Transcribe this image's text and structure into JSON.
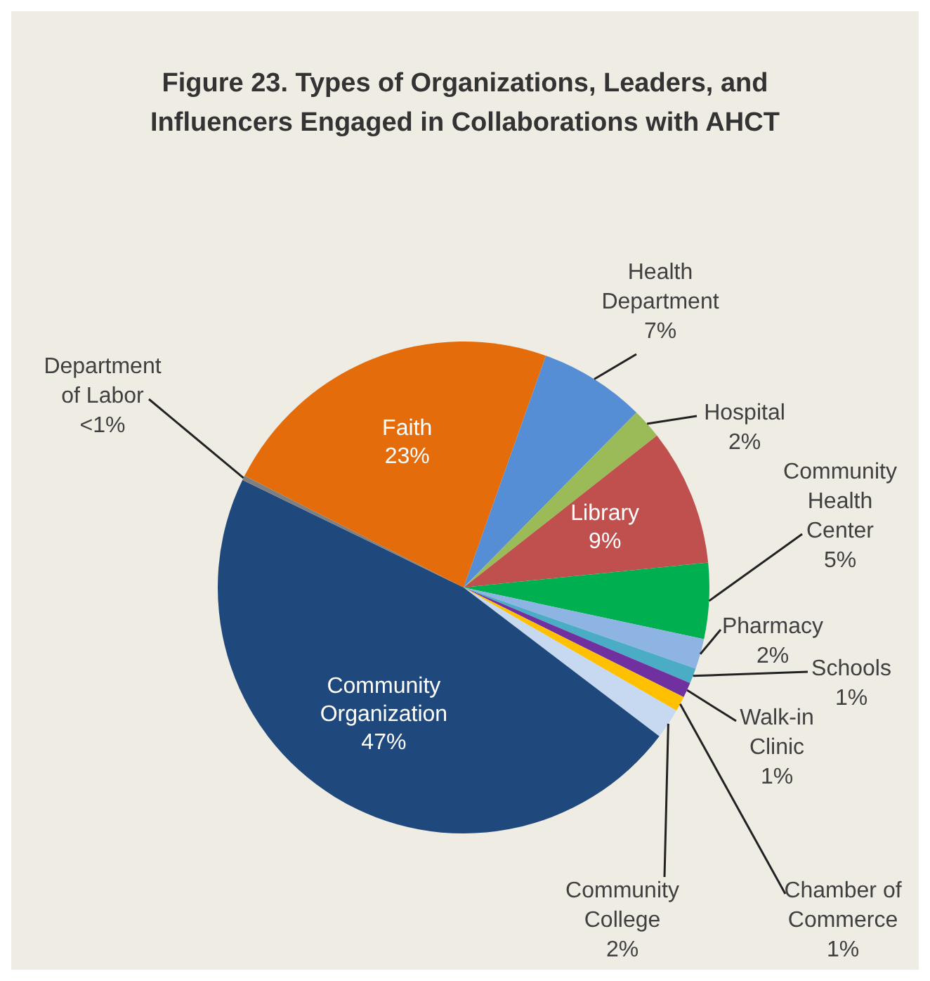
{
  "chart_data": {
    "type": "pie",
    "title": "Figure 23. Types of Organizations, Leaders, and Influencers Engaged in Collaborations with AHCT",
    "categories": [
      "Faith",
      "Health Department",
      "Hospital",
      "Library",
      "Community Health Center",
      "Pharmacy",
      "Schools",
      "Walk-in Clinic",
      "Chamber of Commerce",
      "Community College",
      "Community Organization",
      "Department of Labor"
    ],
    "values": [
      23,
      7,
      2,
      9,
      5,
      2,
      1,
      1,
      1,
      2,
      47,
      0.3
    ],
    "value_labels": [
      "23%",
      "7%",
      "2%",
      "9%",
      "5%",
      "2%",
      "1%",
      "1%",
      "1%",
      "2%",
      "47%",
      "<1%"
    ],
    "colors": [
      "#e46c0a",
      "#558ed5",
      "#9bbb59",
      "#c0504d",
      "#00b050",
      "#8eb4e3",
      "#4bacc6",
      "#7030a0",
      "#ffc000",
      "#c6d9f1",
      "#1f497d",
      "#7f7f7f"
    ],
    "legend": false
  }
}
